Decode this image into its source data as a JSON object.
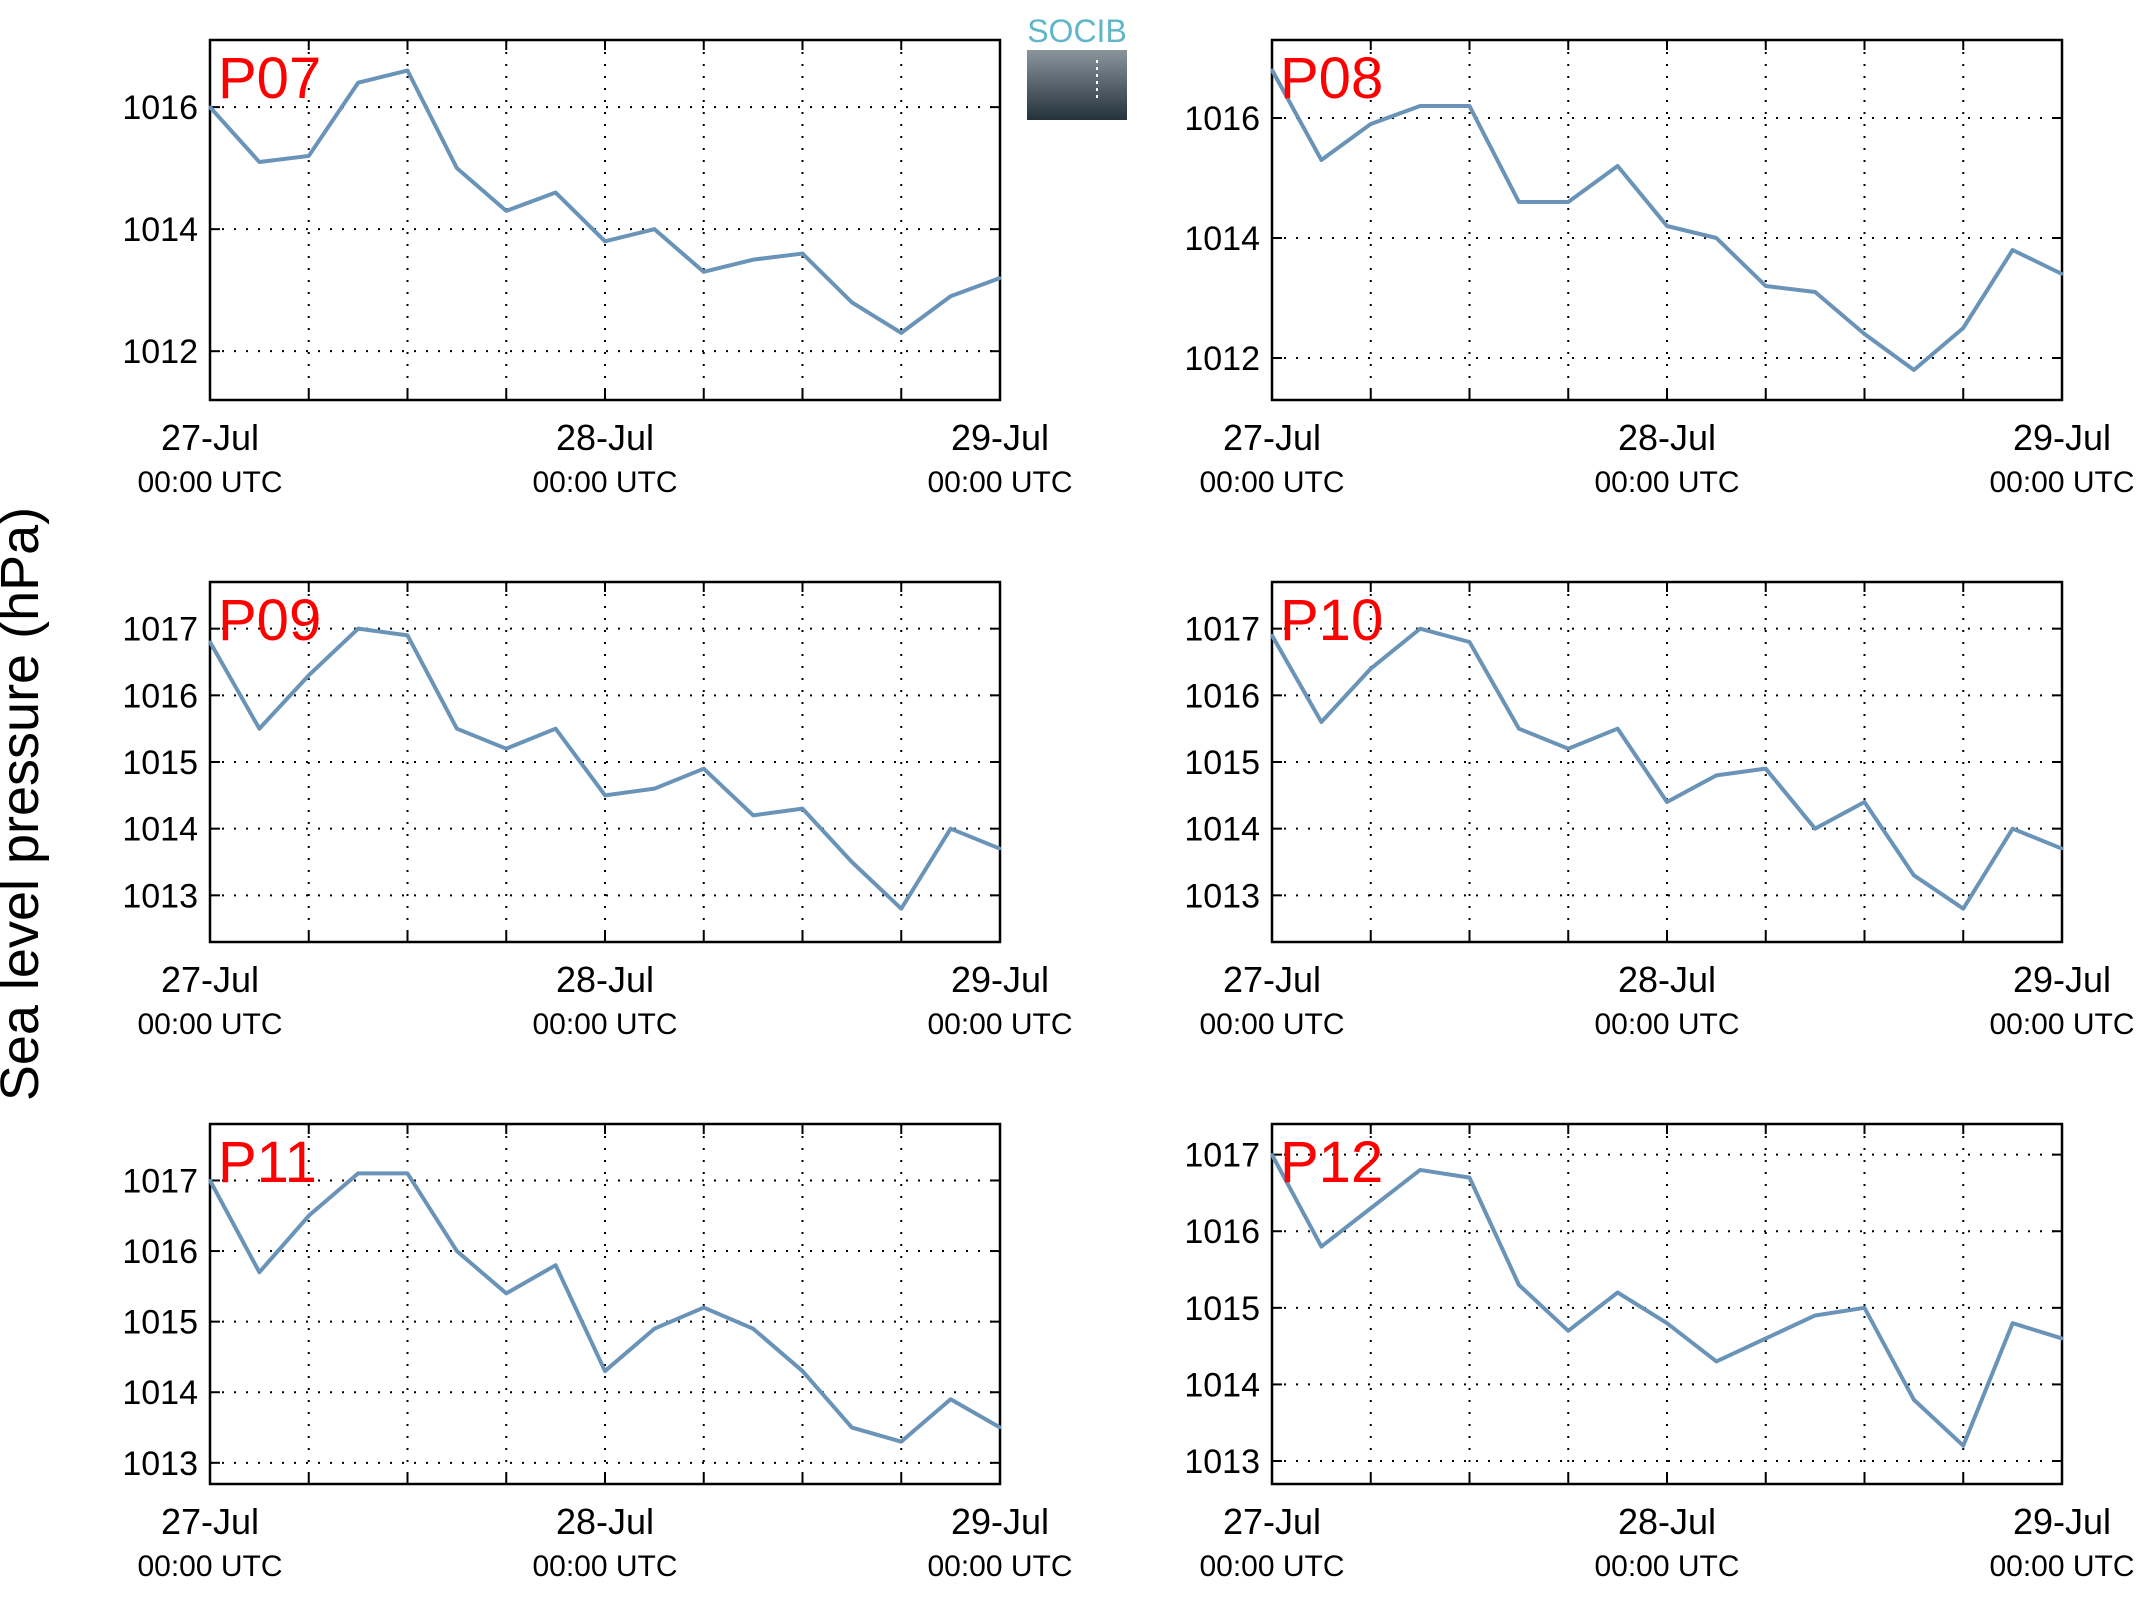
{
  "figure": {
    "ylabel": "Sea level pressure (hPa)",
    "logo_text": "SOCIB",
    "x_ticks": [
      {
        "value": 0,
        "date": "27-Jul",
        "time": "00:00 UTC"
      },
      {
        "value": 1,
        "date": "28-Jul",
        "time": "00:00 UTC"
      },
      {
        "value": 2,
        "date": "29-Jul",
        "time": "00:00 UTC"
      }
    ],
    "line_color": "#6a93b8",
    "label_color": "#ff0000"
  },
  "chart_data": [
    {
      "type": "line",
      "title": "P07",
      "xlim": [
        0,
        2
      ],
      "ylim": [
        1011.2,
        1017.1
      ],
      "yticks": [
        1012,
        1014,
        1016
      ],
      "grid": true,
      "x_hours": [
        0,
        3,
        6,
        9,
        12,
        15,
        18,
        21,
        24,
        27,
        30,
        33,
        36,
        39,
        42,
        45,
        48
      ],
      "values": [
        1016.0,
        1015.1,
        1015.2,
        1016.4,
        1016.6,
        1015.0,
        1014.3,
        1014.6,
        1013.8,
        1014.0,
        1013.3,
        1013.5,
        1013.6,
        1012.8,
        1012.3,
        1012.9,
        1013.2
      ]
    },
    {
      "type": "line",
      "title": "P08",
      "xlim": [
        0,
        2
      ],
      "ylim": [
        1011.3,
        1017.3
      ],
      "yticks": [
        1012,
        1014,
        1016
      ],
      "grid": true,
      "x_hours": [
        0,
        3,
        6,
        9,
        12,
        15,
        18,
        21,
        24,
        27,
        30,
        33,
        36,
        39,
        42,
        45,
        48
      ],
      "values": [
        1016.8,
        1015.3,
        1015.9,
        1016.2,
        1016.2,
        1014.6,
        1014.6,
        1015.2,
        1014.2,
        1014.0,
        1013.2,
        1013.1,
        1012.4,
        1011.8,
        1012.5,
        1013.8,
        1013.4
      ]
    },
    {
      "type": "line",
      "title": "P09",
      "xlim": [
        0,
        2
      ],
      "ylim": [
        1012.3,
        1017.7
      ],
      "yticks": [
        1013,
        1014,
        1015,
        1016,
        1017
      ],
      "grid": true,
      "x_hours": [
        0,
        3,
        6,
        9,
        12,
        15,
        18,
        21,
        24,
        27,
        30,
        33,
        36,
        39,
        42,
        45,
        48
      ],
      "values": [
        1016.8,
        1015.5,
        1016.3,
        1017.0,
        1016.9,
        1015.5,
        1015.2,
        1015.5,
        1014.5,
        1014.6,
        1014.9,
        1014.2,
        1014.3,
        1013.5,
        1012.8,
        1014.0,
        1013.7
      ]
    },
    {
      "type": "line",
      "title": "P10",
      "xlim": [
        0,
        2
      ],
      "ylim": [
        1012.3,
        1017.7
      ],
      "yticks": [
        1013,
        1014,
        1015,
        1016,
        1017
      ],
      "grid": true,
      "x_hours": [
        0,
        3,
        6,
        9,
        12,
        15,
        18,
        21,
        24,
        27,
        30,
        33,
        36,
        39,
        42,
        45,
        48
      ],
      "values": [
        1016.9,
        1015.6,
        1016.4,
        1017.0,
        1016.8,
        1015.5,
        1015.2,
        1015.5,
        1014.4,
        1014.8,
        1014.9,
        1014.0,
        1014.4,
        1013.3,
        1012.8,
        1014.0,
        1013.7
      ]
    },
    {
      "type": "line",
      "title": "P11",
      "xlim": [
        0,
        2
      ],
      "ylim": [
        1012.7,
        1017.8
      ],
      "yticks": [
        1013,
        1014,
        1015,
        1016,
        1017
      ],
      "grid": true,
      "x_hours": [
        0,
        3,
        6,
        9,
        12,
        15,
        18,
        21,
        24,
        27,
        30,
        33,
        36,
        39,
        42,
        45,
        48
      ],
      "values": [
        1017.0,
        1015.7,
        1016.5,
        1017.1,
        1017.1,
        1016.0,
        1015.4,
        1015.8,
        1014.3,
        1014.9,
        1015.2,
        1014.9,
        1014.3,
        1013.5,
        1013.3,
        1013.9,
        1013.5
      ]
    },
    {
      "type": "line",
      "title": "P12",
      "xlim": [
        0,
        2
      ],
      "ylim": [
        1012.7,
        1017.4
      ],
      "yticks": [
        1013,
        1014,
        1015,
        1016,
        1017
      ],
      "grid": true,
      "x_hours": [
        0,
        3,
        6,
        9,
        12,
        15,
        18,
        21,
        24,
        27,
        30,
        33,
        36,
        39,
        42,
        45,
        48
      ],
      "values": [
        1017.0,
        1015.8,
        1016.3,
        1016.8,
        1016.7,
        1015.3,
        1014.7,
        1015.2,
        1014.8,
        1014.3,
        1014.6,
        1014.9,
        1015.0,
        1013.8,
        1013.2,
        1014.8,
        1014.6
      ]
    }
  ]
}
